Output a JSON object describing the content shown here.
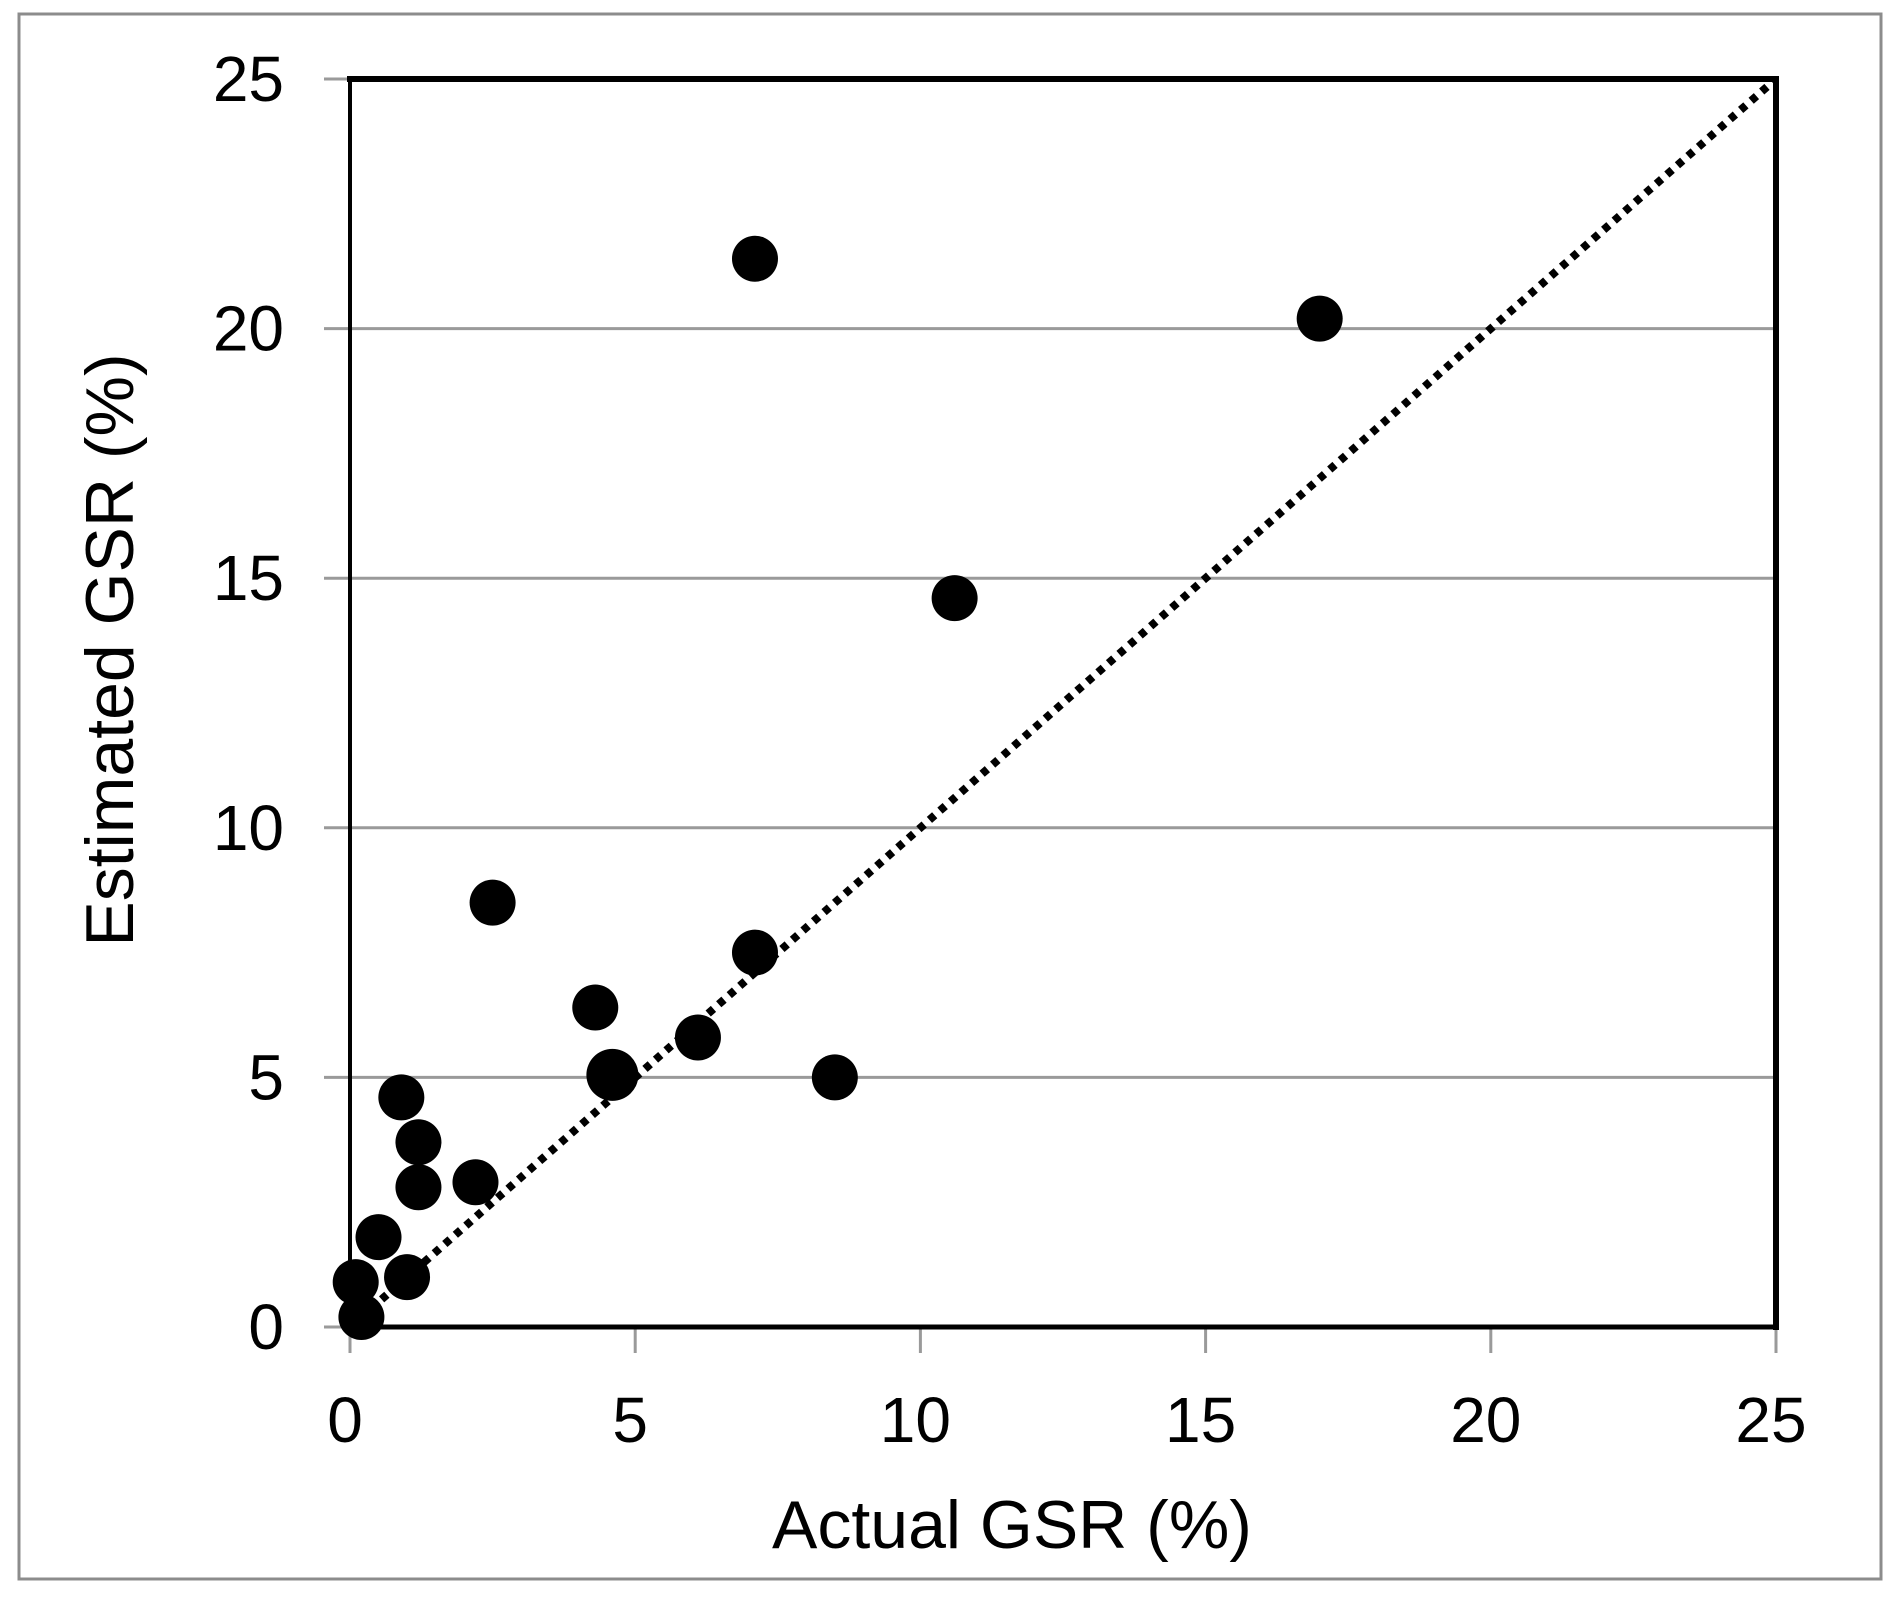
{
  "figure": {
    "background": "#ffffff",
    "border_color": "#8c8c8c"
  },
  "chart_data": {
    "type": "scatter",
    "title": "",
    "xlabel": "Actual GSR (%)",
    "ylabel": "Estimated GSR (%)",
    "xlim": [
      0,
      25
    ],
    "ylim": [
      0,
      25
    ],
    "xticks": [
      0,
      5,
      10,
      15,
      20,
      25
    ],
    "yticks": [
      0,
      5,
      10,
      15,
      20,
      25
    ],
    "grid": "horizontal-major-only",
    "legend": "none",
    "marker": {
      "shape": "circle",
      "color": "#000000"
    },
    "reference_line": {
      "name": "identity-line-y-equals-x",
      "style": "dotted",
      "color": "#000000",
      "from": [
        0,
        0
      ],
      "to": [
        25,
        25
      ]
    },
    "points": [
      {
        "x": 0.1,
        "y": 0.9
      },
      {
        "x": 0.2,
        "y": 0.2
      },
      {
        "x": 0.5,
        "y": 1.8
      },
      {
        "x": 0.9,
        "y": 4.6
      },
      {
        "x": 1.0,
        "y": 1.0
      },
      {
        "x": 1.2,
        "y": 2.8
      },
      {
        "x": 1.2,
        "y": 3.7
      },
      {
        "x": 2.2,
        "y": 2.9
      },
      {
        "x": 2.5,
        "y": 8.5
      },
      {
        "x": 4.3,
        "y": 6.4
      },
      {
        "x": 4.6,
        "y": 5.05,
        "size": "large"
      },
      {
        "x": 6.1,
        "y": 5.8
      },
      {
        "x": 7.1,
        "y": 7.5
      },
      {
        "x": 7.1,
        "y": 21.4
      },
      {
        "x": 8.5,
        "y": 5.0
      },
      {
        "x": 10.6,
        "y": 14.6
      },
      {
        "x": 17.0,
        "y": 20.2
      }
    ],
    "colors": {
      "gridline": "#9a9a9a",
      "tick": "#9a9a9a",
      "axis": "#000000",
      "text": "#000000"
    }
  }
}
